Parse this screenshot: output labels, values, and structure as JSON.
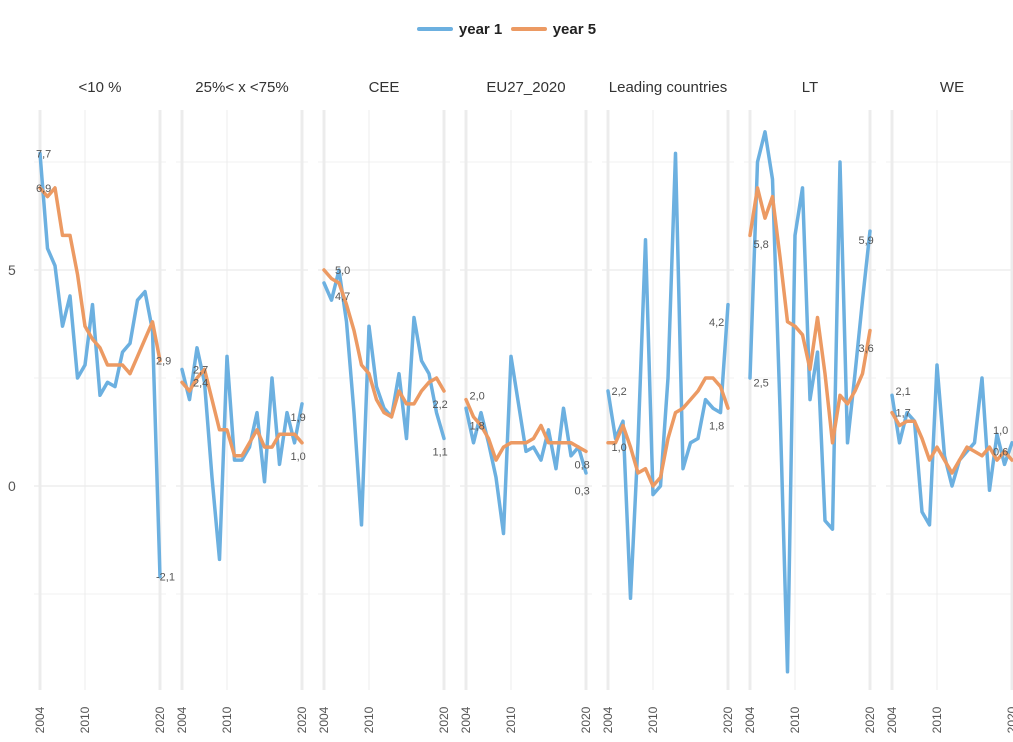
{
  "legend": {
    "items": [
      {
        "label": "year 1",
        "color": "#6cb0e0"
      },
      {
        "label": "year 5",
        "color": "#ec9a63"
      }
    ]
  },
  "chart_data": {
    "type": "line",
    "title": "",
    "xlabel": "",
    "ylabel": "",
    "ylim": [
      -4.5,
      8.5
    ],
    "y_ticks": [
      0,
      5
    ],
    "x_ticks": [
      2004,
      2010,
      2020
    ],
    "grid": true,
    "legend_position": "top-center",
    "panels": [
      {
        "name": "<10 %",
        "x_range": [
          2004,
          2020
        ],
        "series": [
          {
            "name": "year 1",
            "x": [
              2004,
              2005,
              2006,
              2007,
              2008,
              2009,
              2010,
              2011,
              2012,
              2013,
              2014,
              2015,
              2016,
              2017,
              2018,
              2019,
              2020
            ],
            "values": [
              7.7,
              5.5,
              5.1,
              3.7,
              4.4,
              2.5,
              2.8,
              4.2,
              2.1,
              2.4,
              2.3,
              3.1,
              3.3,
              4.3,
              4.5,
              3.6,
              -2.1
            ]
          },
          {
            "name": "year 5",
            "x": [
              2004,
              2005,
              2006,
              2007,
              2008,
              2009,
              2010,
              2011,
              2012,
              2013,
              2014,
              2015,
              2016,
              2017,
              2018,
              2019,
              2020
            ],
            "values": [
              6.9,
              6.7,
              6.9,
              5.8,
              5.8,
              4.9,
              3.7,
              3.4,
              3.2,
              2.8,
              2.8,
              2.8,
              2.6,
              3.0,
              3.4,
              3.8,
              2.9
            ]
          }
        ],
        "labels": [
          {
            "text": "7,7",
            "x": 2004,
            "y": 7.7
          },
          {
            "text": "6,9",
            "x": 2004,
            "y": 6.9
          },
          {
            "text": "2,9",
            "x": 2020,
            "y": 2.9
          },
          {
            "text": "-2,1",
            "x": 2020,
            "y": -2.1
          }
        ]
      },
      {
        "name": "25%< x <75%",
        "x_range": [
          2004,
          2020
        ],
        "series": [
          {
            "name": "year 1",
            "x": [
              2004,
              2005,
              2006,
              2007,
              2008,
              2009,
              2010,
              2011,
              2012,
              2013,
              2014,
              2015,
              2016,
              2017,
              2018,
              2019,
              2020
            ],
            "values": [
              2.7,
              2.0,
              3.2,
              2.4,
              0.2,
              -1.7,
              3.0,
              0.6,
              0.6,
              0.9,
              1.7,
              0.1,
              2.5,
              0.5,
              1.7,
              1.0,
              1.9
            ]
          },
          {
            "name": "year 5",
            "x": [
              2004,
              2005,
              2006,
              2007,
              2008,
              2009,
              2010,
              2011,
              2012,
              2013,
              2014,
              2015,
              2016,
              2017,
              2018,
              2019,
              2020
            ],
            "values": [
              2.4,
              2.2,
              2.5,
              2.7,
              2.0,
              1.3,
              1.3,
              0.7,
              0.7,
              1.0,
              1.3,
              0.9,
              0.9,
              1.2,
              1.2,
              1.2,
              1.0
            ]
          }
        ],
        "labels": [
          {
            "text": "2,7",
            "x": 2006,
            "y": 2.7
          },
          {
            "text": "2,4",
            "x": 2006,
            "y": 2.4
          },
          {
            "text": "1,9",
            "x": 2019,
            "y": 1.6
          },
          {
            "text": "1,0",
            "x": 2019,
            "y": 0.7
          }
        ]
      },
      {
        "name": "CEE",
        "x_range": [
          2004,
          2020
        ],
        "series": [
          {
            "name": "year 1",
            "x": [
              2004,
              2005,
              2006,
              2007,
              2008,
              2009,
              2010,
              2011,
              2012,
              2013,
              2014,
              2015,
              2016,
              2017,
              2018,
              2019,
              2020
            ],
            "values": [
              4.7,
              4.3,
              5.0,
              3.8,
              1.7,
              -0.9,
              3.7,
              2.3,
              1.8,
              1.6,
              2.6,
              1.1,
              3.9,
              2.9,
              2.6,
              1.7,
              1.1
            ]
          },
          {
            "name": "year 5",
            "x": [
              2004,
              2005,
              2006,
              2007,
              2008,
              2009,
              2010,
              2011,
              2012,
              2013,
              2014,
              2015,
              2016,
              2017,
              2018,
              2019,
              2020
            ],
            "values": [
              5.0,
              4.8,
              4.7,
              4.2,
              3.6,
              2.8,
              2.6,
              2.0,
              1.7,
              1.6,
              2.2,
              1.9,
              1.9,
              2.2,
              2.4,
              2.5,
              2.2
            ]
          }
        ],
        "labels": [
          {
            "text": "5,0",
            "x": 2006,
            "y": 5.0
          },
          {
            "text": "4,7",
            "x": 2006,
            "y": 4.4
          },
          {
            "text": "2,2",
            "x": 2019,
            "y": 1.9
          },
          {
            "text": "1,1",
            "x": 2019,
            "y": 0.8
          }
        ]
      },
      {
        "name": "EU27_2020",
        "x_range": [
          2004,
          2020
        ],
        "series": [
          {
            "name": "year 1",
            "x": [
              2004,
              2005,
              2006,
              2007,
              2008,
              2009,
              2010,
              2011,
              2012,
              2013,
              2014,
              2015,
              2016,
              2017,
              2018,
              2019,
              2020
            ],
            "values": [
              1.8,
              1.0,
              1.7,
              1.0,
              0.2,
              -1.1,
              3.0,
              1.9,
              0.8,
              0.9,
              0.6,
              1.3,
              0.4,
              1.8,
              0.7,
              0.9,
              0.3
            ]
          },
          {
            "name": "year 5",
            "x": [
              2004,
              2005,
              2006,
              2007,
              2008,
              2009,
              2010,
              2011,
              2012,
              2013,
              2014,
              2015,
              2016,
              2017,
              2018,
              2019,
              2020
            ],
            "values": [
              2.0,
              1.6,
              1.4,
              1.1,
              0.6,
              0.9,
              1.0,
              1.0,
              1.0,
              1.1,
              1.4,
              1.0,
              1.0,
              1.0,
              1.0,
              0.9,
              0.8
            ]
          }
        ],
        "labels": [
          {
            "text": "2,0",
            "x": 2005,
            "y": 2.1
          },
          {
            "text": "1,8",
            "x": 2005,
            "y": 1.4
          },
          {
            "text": "0,8",
            "x": 2019,
            "y": 0.5
          },
          {
            "text": "0,3",
            "x": 2019,
            "y": -0.1
          }
        ]
      },
      {
        "name": "Leading countries",
        "x_range": [
          2004,
          2020
        ],
        "series": [
          {
            "name": "year 1",
            "x": [
              2004,
              2005,
              2006,
              2007,
              2008,
              2009,
              2010,
              2011,
              2012,
              2013,
              2014,
              2015,
              2016,
              2017,
              2018,
              2019,
              2020
            ],
            "values": [
              2.2,
              1.1,
              1.5,
              -2.6,
              1.0,
              5.7,
              -0.2,
              0.0,
              2.5,
              7.7,
              0.4,
              1.0,
              1.1,
              2.0,
              1.8,
              1.7,
              4.2
            ]
          },
          {
            "name": "year 5",
            "x": [
              2004,
              2005,
              2006,
              2007,
              2008,
              2009,
              2010,
              2011,
              2012,
              2013,
              2014,
              2015,
              2016,
              2017,
              2018,
              2019,
              2020
            ],
            "values": [
              1.0,
              1.0,
              1.4,
              0.9,
              0.3,
              0.4,
              0.0,
              0.2,
              1.1,
              1.7,
              1.8,
              2.0,
              2.2,
              2.5,
              2.5,
              2.3,
              1.8
            ]
          }
        ],
        "labels": [
          {
            "text": "2,2",
            "x": 2005,
            "y": 2.2
          },
          {
            "text": "1,0",
            "x": 2005,
            "y": 0.9
          },
          {
            "text": "4,2",
            "x": 2018,
            "y": 3.8
          },
          {
            "text": "1,8",
            "x": 2018,
            "y": 1.4
          }
        ]
      },
      {
        "name": "LT",
        "x_range": [
          2004,
          2020
        ],
        "series": [
          {
            "name": "year 1",
            "x": [
              2004,
              2005,
              2006,
              2007,
              2008,
              2009,
              2010,
              2011,
              2012,
              2013,
              2014,
              2015,
              2016,
              2017,
              2018,
              2019,
              2020
            ],
            "values": [
              2.5,
              7.5,
              8.2,
              7.1,
              1.8,
              -4.3,
              5.8,
              6.9,
              2.0,
              3.1,
              -0.8,
              -1.0,
              7.5,
              1.0,
              2.6,
              4.3,
              5.9
            ]
          },
          {
            "name": "year 5",
            "x": [
              2004,
              2005,
              2006,
              2007,
              2008,
              2009,
              2010,
              2011,
              2012,
              2013,
              2014,
              2015,
              2016,
              2017,
              2018,
              2019,
              2020
            ],
            "values": [
              5.8,
              6.9,
              6.2,
              6.7,
              5.3,
              3.8,
              3.7,
              3.5,
              2.7,
              3.9,
              2.6,
              1.0,
              2.1,
              1.9,
              2.2,
              2.6,
              3.6
            ]
          }
        ],
        "labels": [
          {
            "text": "5,8",
            "x": 2005,
            "y": 5.6
          },
          {
            "text": "2,5",
            "x": 2005,
            "y": 2.4
          },
          {
            "text": "5,9",
            "x": 2019,
            "y": 5.7
          },
          {
            "text": "3,6",
            "x": 2019,
            "y": 3.2
          }
        ]
      },
      {
        "name": "WE",
        "x_range": [
          2004,
          2020
        ],
        "series": [
          {
            "name": "year 1",
            "x": [
              2004,
              2005,
              2006,
              2007,
              2008,
              2009,
              2010,
              2011,
              2012,
              2013,
              2014,
              2015,
              2016,
              2017,
              2018,
              2019,
              2020
            ],
            "values": [
              2.1,
              1.0,
              1.7,
              1.5,
              -0.6,
              -0.9,
              2.8,
              0.7,
              0.0,
              0.6,
              0.8,
              1.0,
              2.5,
              -0.1,
              1.2,
              0.5,
              1.0
            ]
          },
          {
            "name": "year 5",
            "x": [
              2004,
              2005,
              2006,
              2007,
              2008,
              2009,
              2010,
              2011,
              2012,
              2013,
              2014,
              2015,
              2016,
              2017,
              2018,
              2019,
              2020
            ],
            "values": [
              1.7,
              1.4,
              1.5,
              1.5,
              1.1,
              0.6,
              0.9,
              0.6,
              0.3,
              0.6,
              0.9,
              0.8,
              0.7,
              0.9,
              0.6,
              0.8,
              0.6
            ]
          }
        ],
        "labels": [
          {
            "text": "2,1",
            "x": 2005,
            "y": 2.2
          },
          {
            "text": "1,7",
            "x": 2005,
            "y": 1.7
          },
          {
            "text": "1,0",
            "x": 2018,
            "y": 1.3
          },
          {
            "text": "0,6",
            "x": 2018,
            "y": 0.8
          }
        ]
      }
    ]
  }
}
